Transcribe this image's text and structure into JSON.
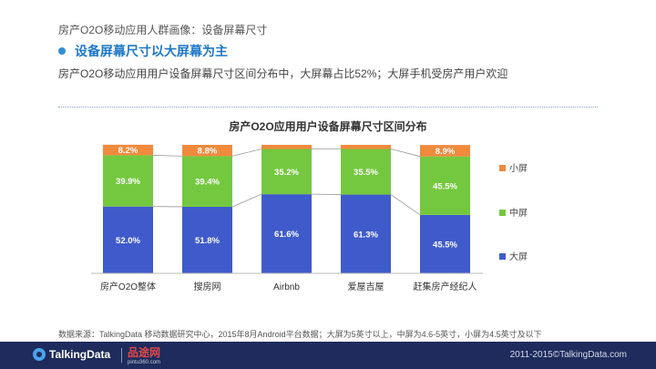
{
  "header": {
    "page_title": "房产O2O移动应用人群画像：设备屏幕尺寸",
    "headline": "设备屏幕尺寸以大屏幕为主",
    "subline": "房产O2O移动应用用户设备屏幕尺寸区间分布中，大屏幕占比52%；大屏手机受房产用户欢迎"
  },
  "chart_data": {
    "type": "bar",
    "stacked": true,
    "percent_stacked": true,
    "title": "房产O2O应用用户设备屏幕尺寸区间分布",
    "categories": [
      "房产O2O整体",
      "搜房网",
      "Airbnb",
      "爱屋吉屋",
      "赶集房产经纪人"
    ],
    "series": [
      {
        "name": "大屏",
        "color": "#3f5bcb",
        "values": [
          52.0,
          51.8,
          61.6,
          61.3,
          45.5
        ]
      },
      {
        "name": "中屏",
        "color": "#74c83f",
        "values": [
          39.9,
          39.4,
          35.2,
          35.5,
          45.5
        ]
      },
      {
        "name": "小屏",
        "color": "#f08a3c",
        "values": [
          8.2,
          8.8,
          3.2,
          3.2,
          8.9
        ]
      }
    ],
    "data_labels": [
      [
        "52.0%",
        "51.8%",
        "61.6%",
        "61.3%",
        "45.5%"
      ],
      [
        "39.9%",
        "39.4%",
        "35.2%",
        "35.5%",
        "45.5%"
      ],
      [
        "8.2%",
        "8.8%",
        "",
        "",
        "8.9%"
      ]
    ],
    "legend_position": "right",
    "legend_order": [
      "小屏",
      "中屏",
      "大屏"
    ],
    "grid": false,
    "series_lines": true,
    "ylim": [
      0,
      100
    ]
  },
  "footer": {
    "source": "数据来源：TalkingData 移动数据研究中心，2015年8月Android平台数据；大屏为5英寸以上，中屏为4.6-5英寸，小屏为4.5英寸及以下",
    "logo": "TalkingData",
    "partner_name": "品途网",
    "partner_url": "pintu360.com",
    "copyright": "2011-2015©TalkingData.com"
  }
}
